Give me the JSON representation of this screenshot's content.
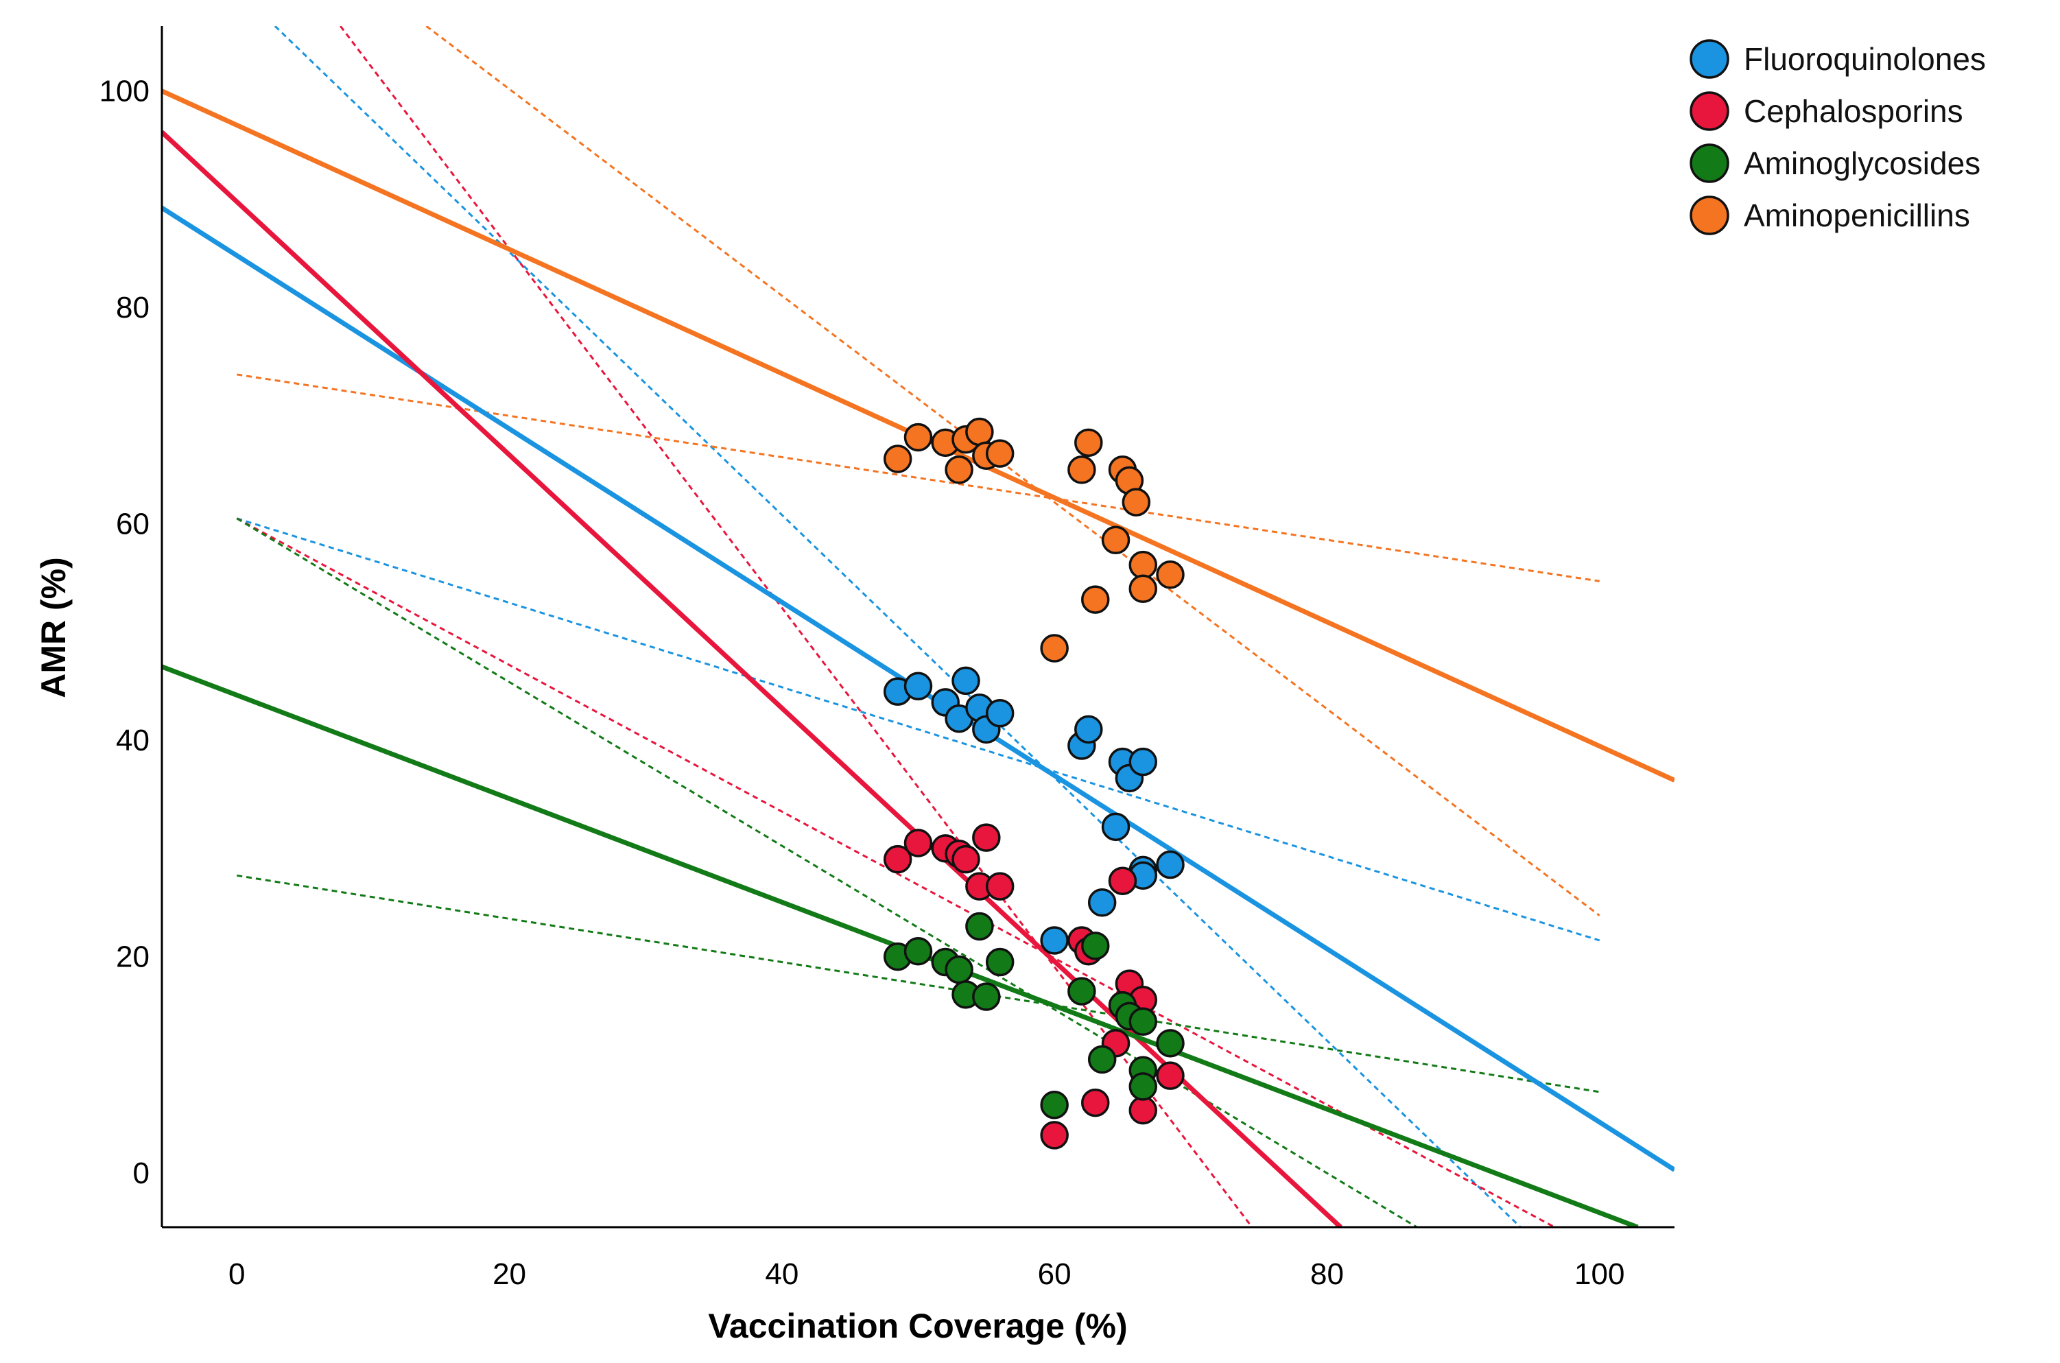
{
  "chart_data": {
    "type": "scatter",
    "title": "",
    "xlabel": "Vaccination Coverage (%)",
    "ylabel": "AMR (%)",
    "xlim": [
      -5.5,
      105.5
    ],
    "ylim": [
      -5,
      106
    ],
    "xticks": [
      0,
      20,
      40,
      60,
      80,
      100
    ],
    "yticks": [
      0,
      20,
      40,
      60,
      80,
      100
    ],
    "grid": false,
    "legend_position": "top-right",
    "series": [
      {
        "name": "Fluoroquinolones",
        "color": "#1a94e0",
        "points": [
          [
            48.5,
            44.5
          ],
          [
            50,
            45
          ],
          [
            52,
            43.5
          ],
          [
            53,
            42
          ],
          [
            53.5,
            45.5
          ],
          [
            54.5,
            43
          ],
          [
            55,
            41
          ],
          [
            56,
            42.5
          ],
          [
            60,
            21.5
          ],
          [
            63.5,
            25
          ],
          [
            62,
            39.5
          ],
          [
            62.5,
            41
          ],
          [
            64.5,
            32
          ],
          [
            65,
            38
          ],
          [
            65.5,
            36.5
          ],
          [
            66.5,
            38
          ],
          [
            66.5,
            28
          ],
          [
            66.5,
            27.5
          ],
          [
            68.5,
            28.5
          ]
        ],
        "fit_line": [
          [
            -5.5,
            89.2
          ],
          [
            105.5,
            0.3
          ]
        ],
        "ci_lines": [
          [
            [
              2.8,
              106
            ],
            [
              94.2,
              -5
            ]
          ],
          [
            [
              0,
              60.5
            ],
            [
              100,
              21.5
            ]
          ]
        ]
      },
      {
        "name": "Cephalosporins",
        "color": "#e8163c",
        "points": [
          [
            48.5,
            29
          ],
          [
            50,
            30.5
          ],
          [
            52,
            30
          ],
          [
            53,
            29.5
          ],
          [
            53.5,
            29
          ],
          [
            54.5,
            26.5
          ],
          [
            55,
            31
          ],
          [
            56,
            26.5
          ],
          [
            60,
            3.5
          ],
          [
            62,
            21.5
          ],
          [
            62.5,
            20.5
          ],
          [
            63,
            6.5
          ],
          [
            64.5,
            12
          ],
          [
            65,
            27
          ],
          [
            65.5,
            17.5
          ],
          [
            66.5,
            16
          ],
          [
            66.5,
            5.8
          ],
          [
            68.5,
            9
          ]
        ],
        "fit_line": [
          [
            -5.5,
            96.2
          ],
          [
            81,
            -5
          ]
        ],
        "ci_lines": [
          [
            [
              7.6,
              106
            ],
            [
              74.5,
              -5
            ]
          ],
          [
            [
              0,
              60.5
            ],
            [
              96.7,
              -5
            ]
          ]
        ]
      },
      {
        "name": "Aminoglycosides",
        "color": "#127a17",
        "points": [
          [
            48.5,
            20
          ],
          [
            50,
            20.5
          ],
          [
            52,
            19.5
          ],
          [
            53,
            18.8
          ],
          [
            53.5,
            16.5
          ],
          [
            54.5,
            22.8
          ],
          [
            55,
            16.3
          ],
          [
            56,
            19.5
          ],
          [
            60,
            6.3
          ],
          [
            62,
            16.8
          ],
          [
            63,
            21
          ],
          [
            63.5,
            10.5
          ],
          [
            65,
            15.5
          ],
          [
            65.5,
            14.5
          ],
          [
            66.5,
            14
          ],
          [
            66.5,
            9.5
          ],
          [
            66.5,
            8
          ],
          [
            68.5,
            12
          ]
        ],
        "fit_line": [
          [
            -5.5,
            46.8
          ],
          [
            102.8,
            -5
          ]
        ],
        "ci_lines": [
          [
            [
              0,
              60.5
            ],
            [
              86.6,
              -5
            ]
          ],
          [
            [
              0,
              27.5
            ],
            [
              100,
              7.5
            ]
          ]
        ]
      },
      {
        "name": "Aminopenicillins",
        "color": "#f47421",
        "points": [
          [
            48.5,
            66
          ],
          [
            50,
            68
          ],
          [
            52,
            67.5
          ],
          [
            53,
            65
          ],
          [
            53.5,
            67.8
          ],
          [
            54.5,
            68.5
          ],
          [
            55,
            66.3
          ],
          [
            56,
            66.5
          ],
          [
            60,
            48.5
          ],
          [
            62,
            65
          ],
          [
            62.5,
            67.5
          ],
          [
            63,
            53
          ],
          [
            64.5,
            58.5
          ],
          [
            65,
            65
          ],
          [
            65.5,
            64
          ],
          [
            66,
            62
          ],
          [
            66.5,
            56.2
          ],
          [
            66.5,
            54
          ],
          [
            68.5,
            55.3
          ]
        ],
        "fit_line": [
          [
            -5.5,
            100
          ],
          [
            105.5,
            36.3
          ]
        ],
        "ci_lines": [
          [
            [
              13.9,
              106
            ],
            [
              100,
              23.8
            ]
          ],
          [
            [
              0,
              73.8
            ],
            [
              100,
              54.7
            ]
          ]
        ]
      }
    ]
  }
}
